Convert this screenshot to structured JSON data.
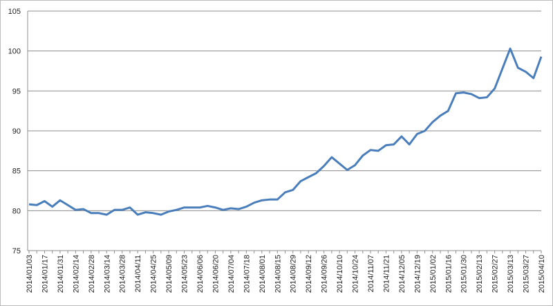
{
  "chart_data": {
    "type": "line",
    "categories": [
      "2014/01/03",
      null,
      "2014/01/17",
      null,
      "2014/01/31",
      null,
      "2014/02/14",
      null,
      "2014/02/28",
      null,
      "2014/03/14",
      null,
      "2014/03/28",
      null,
      "2014/04/11",
      null,
      "2014/04/25",
      null,
      "2014/05/09",
      null,
      "2014/05/23",
      null,
      "2014/06/06",
      null,
      "2014/06/20",
      null,
      "2014/07/04",
      null,
      "2014/07/18",
      null,
      "2014/08/01",
      null,
      "2014/08/15",
      null,
      "2014/08/29",
      null,
      "2014/09/12",
      null,
      "2014/09/26",
      null,
      "2014/10/10",
      null,
      "2014/10/24",
      null,
      "2014/11/07",
      null,
      "2014/11/21",
      null,
      "2014/12/05",
      null,
      "2014/12/19",
      null,
      "2015/01/02",
      null,
      "2015/01/16",
      null,
      "2015/01/30",
      null,
      "2015/02/13",
      null,
      "2015/02/27",
      null,
      "2015/03/13",
      null,
      "2015/03/27",
      null,
      "2015/04/10"
    ],
    "values": [
      80.8,
      80.7,
      81.2,
      80.5,
      81.3,
      80.7,
      80.1,
      80.2,
      79.7,
      79.7,
      79.5,
      80.1,
      80.1,
      80.4,
      79.5,
      79.8,
      79.7,
      79.5,
      79.9,
      80.1,
      80.4,
      80.4,
      80.4,
      80.6,
      80.4,
      80.1,
      80.3,
      80.2,
      80.5,
      81.0,
      81.3,
      81.4,
      81.4,
      82.3,
      82.6,
      83.7,
      84.2,
      84.7,
      85.6,
      86.7,
      85.9,
      85.1,
      85.7,
      86.9,
      87.6,
      87.5,
      88.2,
      88.3,
      89.3,
      88.3,
      89.6,
      90.0,
      91.1,
      91.9,
      92.5,
      94.7,
      94.8,
      94.6,
      94.1,
      94.2,
      95.3,
      97.8,
      100.3,
      97.9,
      97.4,
      96.6,
      99.3
    ],
    "color": "#4a7ebb",
    "ylim": [
      75,
      105
    ],
    "yticks": [
      75,
      80,
      85,
      90,
      95,
      100,
      105
    ],
    "grid": true
  }
}
